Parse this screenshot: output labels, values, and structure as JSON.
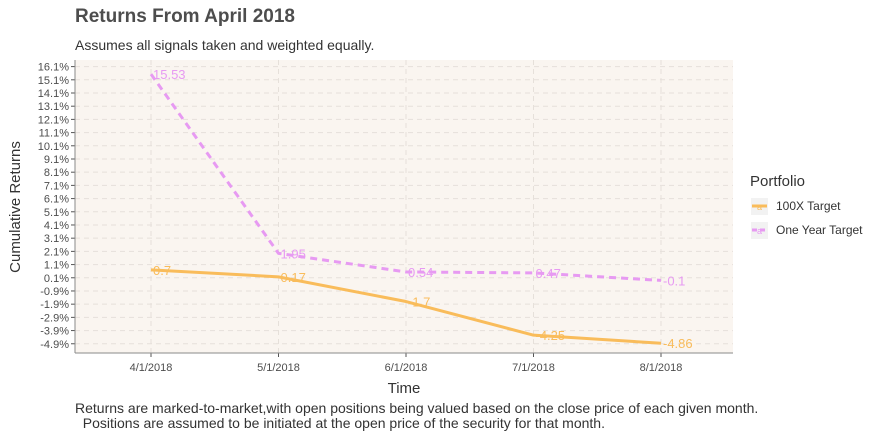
{
  "chart_data": {
    "type": "line",
    "title": "Returns From April 2018",
    "subtitle": "Assumes all signals taken and weighted equally.",
    "caption_lines": [
      "Returns are marked-to-market,with open positions being valued based on the close price of each given month.",
      "  Positions are assumed to be initiated at the open price of the security for that month."
    ],
    "xlabel": "Time",
    "ylabel": "Cumulative Returns",
    "categories": [
      "4/1/2018",
      "5/1/2018",
      "6/1/2018",
      "7/1/2018",
      "8/1/2018"
    ],
    "y_ticks": [
      "-4.9%",
      "-3.9%",
      "-2.9%",
      "-1.9%",
      "-0.9%",
      "0.1%",
      "1.1%",
      "2.1%",
      "3.1%",
      "4.1%",
      "5.1%",
      "6.1%",
      "7.1%",
      "8.1%",
      "9.1%",
      "10.1%",
      "11.1%",
      "12.1%",
      "13.1%",
      "14.1%",
      "15.1%",
      "16.1%"
    ],
    "y_tick_values": [
      -4.9,
      -3.9,
      -2.9,
      -1.9,
      -0.9,
      0.1,
      1.1,
      2.1,
      3.1,
      4.1,
      5.1,
      6.1,
      7.1,
      8.1,
      9.1,
      10.1,
      11.1,
      12.1,
      13.1,
      14.1,
      15.1,
      16.1
    ],
    "ylim": [
      -5.6,
      16.6
    ],
    "grid": true,
    "legend_title": "Portfolio",
    "legend_position": "right",
    "series": [
      {
        "name": "100X Target",
        "values": [
          0.7,
          0.17,
          -1.7,
          -4.25,
          -4.86
        ],
        "labels": [
          "0.7",
          "0.17",
          "-1.7",
          "-4.25",
          "-4.86"
        ],
        "color": "#f9bc5b",
        "dash": "solid"
      },
      {
        "name": "One Year Target",
        "values": [
          15.53,
          1.95,
          0.54,
          0.47,
          -0.1
        ],
        "labels": [
          "15.53",
          "1.95",
          "0.54",
          "0.47",
          "-0.1"
        ],
        "color": "#e79af2",
        "dash": "dashed"
      }
    ]
  }
}
